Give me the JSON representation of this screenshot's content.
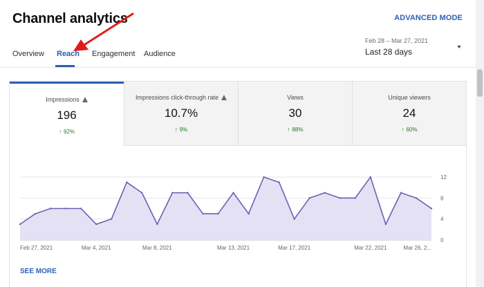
{
  "header": {
    "title": "Channel analytics",
    "advanced_mode": "ADVANCED MODE"
  },
  "tabs": [
    {
      "label": "Overview",
      "active": false
    },
    {
      "label": "Reach",
      "active": true
    },
    {
      "label": "Engagement",
      "active": false
    },
    {
      "label": "Audience",
      "active": false
    }
  ],
  "date_picker": {
    "range": "Feb 28 – Mar 27, 2021",
    "label": "Last 28 days"
  },
  "metrics": [
    {
      "label": "Impressions",
      "warning": true,
      "value": "196",
      "change": "92%"
    },
    {
      "label": "Impressions click-through rate",
      "warning": true,
      "value": "10.7%",
      "change": "9%"
    },
    {
      "label": "Views",
      "warning": false,
      "value": "30",
      "change": "88%"
    },
    {
      "label": "Unique viewers",
      "warning": false,
      "value": "24",
      "change": "60%"
    }
  ],
  "see_more": "SEE MORE",
  "colors": {
    "accent": "#2b5fb4",
    "line": "#6a60b4",
    "fill": "#e4e1f4",
    "positive": "#1f7a22"
  },
  "chart_data": {
    "type": "area",
    "series": [
      {
        "values": [
          3,
          5,
          6,
          6,
          6,
          3,
          4,
          11,
          9,
          3,
          9,
          9,
          5,
          5,
          9,
          5,
          12,
          11,
          4,
          8,
          9,
          8,
          8,
          12,
          3,
          9,
          8,
          6
        ]
      }
    ],
    "x_tick_labels": [
      "Feb 27, 2021",
      "Mar 4, 2021",
      "Mar 8, 2021",
      "Mar 13, 2021",
      "Mar 17, 2021",
      "Mar 22, 2021",
      "Mar 26, 2..."
    ],
    "x_tick_index": [
      0,
      5,
      9,
      14,
      18,
      23,
      27
    ],
    "y_ticks": [
      0,
      4,
      8,
      12
    ],
    "ylim": [
      0,
      12
    ],
    "grid": true,
    "y_axis_position": "right"
  }
}
